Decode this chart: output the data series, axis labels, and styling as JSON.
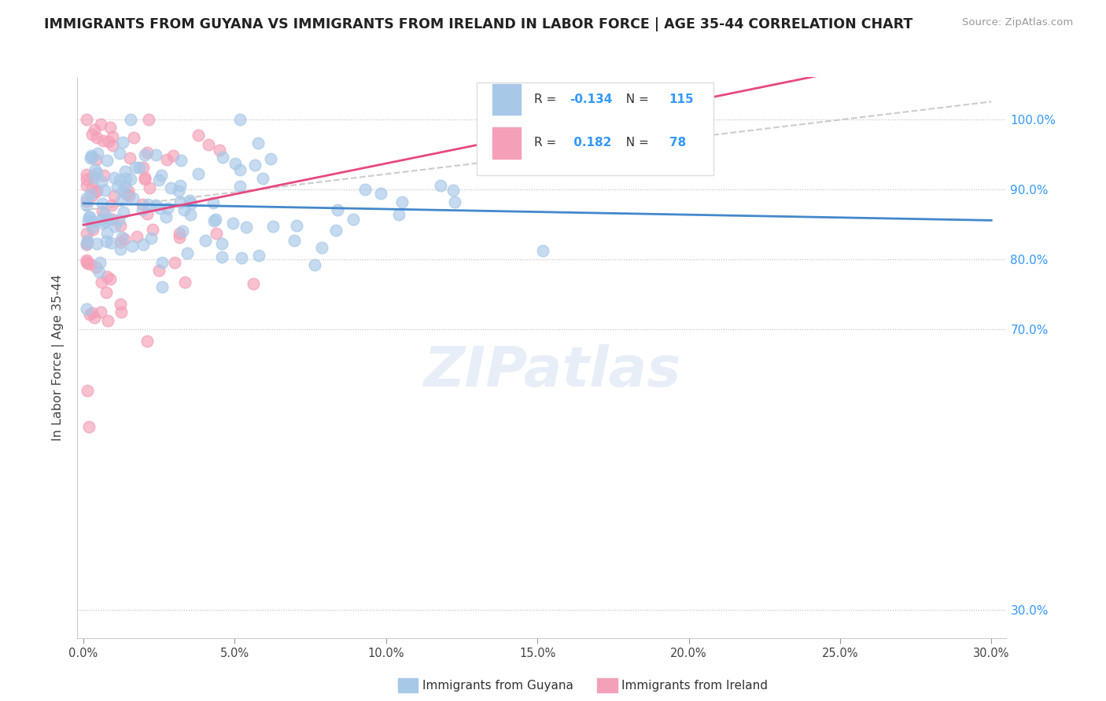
{
  "title": "IMMIGRANTS FROM GUYANA VS IMMIGRANTS FROM IRELAND IN LABOR FORCE | AGE 35-44 CORRELATION CHART",
  "source": "Source: ZipAtlas.com",
  "ylabel": "In Labor Force | Age 35-44",
  "legend_label1": "Immigrants from Guyana",
  "legend_label2": "Immigrants from Ireland",
  "R1": "-0.134",
  "N1": "115",
  "R2": "0.182",
  "N2": "78",
  "color_guyana": "#a8c8e8",
  "color_ireland": "#f4a0b8",
  "trend_color_guyana": "#4488cc",
  "trend_color_ireland": "#e84880",
  "ref_line_color": "#cccccc",
  "xlim": [
    -0.002,
    0.305
  ],
  "ylim": [
    0.26,
    1.06
  ],
  "xtick_vals": [
    0.0,
    0.05,
    0.1,
    0.15,
    0.2,
    0.25,
    0.3
  ],
  "ytick_vals": [
    0.3,
    0.7,
    0.8,
    0.9,
    1.0
  ],
  "ytick_labels": [
    "30.0%",
    "70.0%",
    "80.0%",
    "90.0%",
    "100.0%"
  ],
  "xtick_labels": [
    "0.0%",
    "5.0%",
    "10.0%",
    "15.0%",
    "20.0%",
    "25.0%",
    "30.0%"
  ],
  "watermark": "ZIPatlas",
  "guyana_seed": 42,
  "ireland_seed": 99
}
